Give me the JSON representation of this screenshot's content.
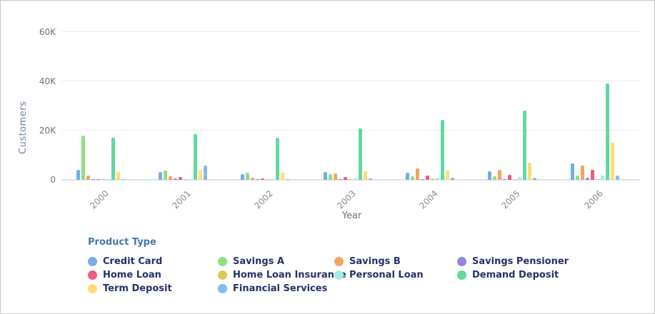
{
  "chart_data": {
    "type": "bar",
    "title": "",
    "xlabel": "Year",
    "ylabel": "Customers",
    "legend_title": "Product Type",
    "legend_position": "bottom",
    "grid": true,
    "ylim": [
      0,
      60000
    ],
    "yticks": [
      {
        "value": 0,
        "label": "0"
      },
      {
        "value": 20000,
        "label": "20K"
      },
      {
        "value": 40000,
        "label": "40K"
      },
      {
        "value": 60000,
        "label": "60K"
      }
    ],
    "categories": [
      "2000",
      "2001",
      "2002",
      "2003",
      "2004",
      "2005",
      "2006"
    ],
    "series": [
      {
        "name": "Credit Card",
        "color": "#78ace3",
        "values": [
          4000,
          3200,
          2200,
          3100,
          2900,
          3400,
          6600
        ]
      },
      {
        "name": "Savings A",
        "color": "#8fe07d",
        "values": [
          18000,
          3900,
          2800,
          2400,
          1500,
          1400,
          1800
        ]
      },
      {
        "name": "Savings B",
        "color": "#f4a45e",
        "values": [
          1700,
          1400,
          1000,
          2600,
          4600,
          4100,
          5800
        ]
      },
      {
        "name": "Savings Pensioner",
        "color": "#8d88dd",
        "values": [
          100,
          700,
          200,
          200,
          200,
          400,
          1000
        ]
      },
      {
        "name": "Home Loan",
        "color": "#ea5c7d",
        "values": [
          400,
          1100,
          600,
          1200,
          1800,
          2100,
          4000
        ]
      },
      {
        "name": "Home Loan Insurance",
        "color": "#d8c854",
        "values": [
          100,
          100,
          100,
          100,
          500,
          200,
          200
        ]
      },
      {
        "name": "Personal Loan",
        "color": "#a5ebe0",
        "values": [
          100,
          100,
          200,
          600,
          800,
          1200,
          1600
        ]
      },
      {
        "name": "Demand Deposit",
        "color": "#60d9a1",
        "values": [
          17000,
          18700,
          17000,
          20900,
          24400,
          28200,
          39100
        ]
      },
      {
        "name": "Term Deposit",
        "color": "#fede74",
        "values": [
          3300,
          4100,
          3000,
          3400,
          3900,
          7000,
          15000
        ]
      },
      {
        "name": "Financial Services",
        "color": "#87b8ec",
        "values": [
          200,
          5800,
          300,
          500,
          800,
          1000,
          1700
        ]
      }
    ]
  }
}
